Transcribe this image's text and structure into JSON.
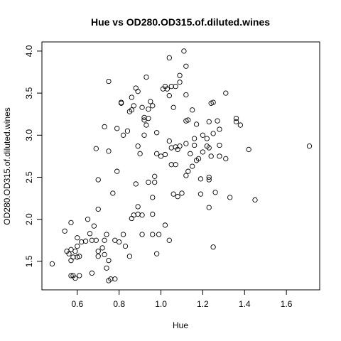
{
  "chart_data": {
    "type": "scatter",
    "title": "Hue vs OD280.OD315.of.diluted.wines",
    "x_label": "Hue",
    "y_label": "OD280.OD315.of.diluted.wines",
    "xlim": [
      0.4308,
      1.7592
    ],
    "ylim": [
      1.161,
      4.109
    ],
    "xticks": [
      0.6,
      0.8,
      {
        "value": 1.0,
        "label": "1.0"
      },
      1.2,
      1.4,
      1.6
    ],
    "yticks": [
      1.5,
      {
        "value": 2.0,
        "label": "2.0"
      },
      2.5,
      {
        "value": 3.0,
        "label": "3.0"
      },
      3.5,
      {
        "value": 4.0,
        "label": "4.0"
      }
    ],
    "color": "#000000",
    "x": [
      0.48,
      0.54,
      0.55,
      0.56,
      0.57,
      0.57,
      0.57,
      0.57,
      0.58,
      0.58,
      0.59,
      0.59,
      0.6,
      0.6,
      0.6,
      0.61,
      0.61,
      0.62,
      0.64,
      0.65,
      0.66,
      0.67,
      0.67,
      0.68,
      0.69,
      0.7,
      0.7,
      0.7,
      0.72,
      0.73,
      0.73,
      0.74,
      0.74,
      0.75,
      0.75,
      0.76,
      0.78,
      0.78,
      0.8,
      0.82,
      0.83,
      0.85,
      0.86,
      0.87,
      0.89,
      0.89,
      0.91,
      0.91,
      0.94,
      0.96,
      0.96,
      0.98,
      0.99,
      1.02,
      1.04,
      1.25,
      0.69,
      0.7,
      0.73,
      0.75,
      0.75,
      0.77,
      0.79,
      0.79,
      0.81,
      0.81,
      0.82,
      0.84,
      0.85,
      0.86,
      0.86,
      0.87,
      0.88,
      0.88,
      0.89,
      0.89,
      0.9,
      0.91,
      0.92,
      0.92,
      0.92,
      0.93,
      0.93,
      0.94,
      0.94,
      0.95,
      0.96,
      0.96,
      0.97,
      0.97,
      0.98,
      0.98,
      1.0,
      1.01,
      1.02,
      1.02,
      1.03,
      1.04,
      1.04,
      1.04,
      1.05,
      1.05,
      1.05,
      1.06,
      1.06,
      1.07,
      1.07,
      1.07,
      1.08,
      1.08,
      1.09,
      1.09,
      1.09,
      1.1,
      1.11,
      1.12,
      1.12,
      1.12,
      1.12,
      1.12,
      1.13,
      1.13,
      1.14,
      1.15,
      1.15,
      1.16,
      1.16,
      1.17,
      1.17,
      1.18,
      1.19,
      1.19,
      1.2,
      1.2,
      1.22,
      1.22,
      1.23,
      1.23,
      1.23,
      1.23,
      1.23,
      1.24,
      1.24,
      1.25,
      1.25,
      1.26,
      1.27,
      1.28,
      1.28,
      1.28,
      1.31,
      1.31,
      1.33,
      1.36,
      1.36,
      1.38,
      1.42,
      1.45,
      1.71
    ],
    "y": [
      1.47,
      1.86,
      1.62,
      1.59,
      1.51,
      1.64,
      1.96,
      1.33,
      1.55,
      1.33,
      1.62,
      1.3,
      1.78,
      1.55,
      1.68,
      1.56,
      1.33,
      1.73,
      1.74,
      2.0,
      1.83,
      1.75,
      1.36,
      1.92,
      1.75,
      1.62,
      1.56,
      2.12,
      1.66,
      1.75,
      1.58,
      1.82,
      1.42,
      1.51,
      1.27,
      1.29,
      1.29,
      1.75,
      1.73,
      1.82,
      1.68,
      1.56,
      2.01,
      2.05,
      2.15,
      2.06,
      1.82,
      2.05,
      2.44,
      1.82,
      2.06,
      1.59,
      1.82,
      1.93,
      1.75,
      1.67,
      2.84,
      2.47,
      3.1,
      2.81,
      3.64,
      2.31,
      2.57,
      3.08,
      3.39,
      3.38,
      3.0,
      3.05,
      3.28,
      3.3,
      3.45,
      3.35,
      3.56,
      2.42,
      3.52,
      2.87,
      2.78,
      3.33,
      3.21,
      3.18,
      3.0,
      3.69,
      3.12,
      3.2,
      3.31,
      3.4,
      3.35,
      2.26,
      2.51,
      2.44,
      2.78,
      3.03,
      2.75,
      3.55,
      3.58,
      2.77,
      3.55,
      3.92,
      3.47,
      2.93,
      3.58,
      2.85,
      2.65,
      3.33,
      2.3,
      3.58,
      2.86,
      2.65,
      2.83,
      2.27,
      3.63,
      3.71,
      2.87,
      2.31,
      4.0,
      3.82,
      3.48,
      2.9,
      2.52,
      3.17,
      3.18,
      2.57,
      2.78,
      3.3,
      2.63,
      2.88,
      2.96,
      3.13,
      2.7,
      2.72,
      2.48,
      2.3,
      3.0,
      2.8,
      2.87,
      2.96,
      2.14,
      2.5,
      2.47,
      3.16,
      2.85,
      2.75,
      3.38,
      3.39,
      3.02,
      2.32,
      3.17,
      2.75,
      2.88,
      3.07,
      3.5,
      2.72,
      2.26,
      3.2,
      3.16,
      3.12,
      2.83,
      2.23,
      2.87
    ]
  }
}
